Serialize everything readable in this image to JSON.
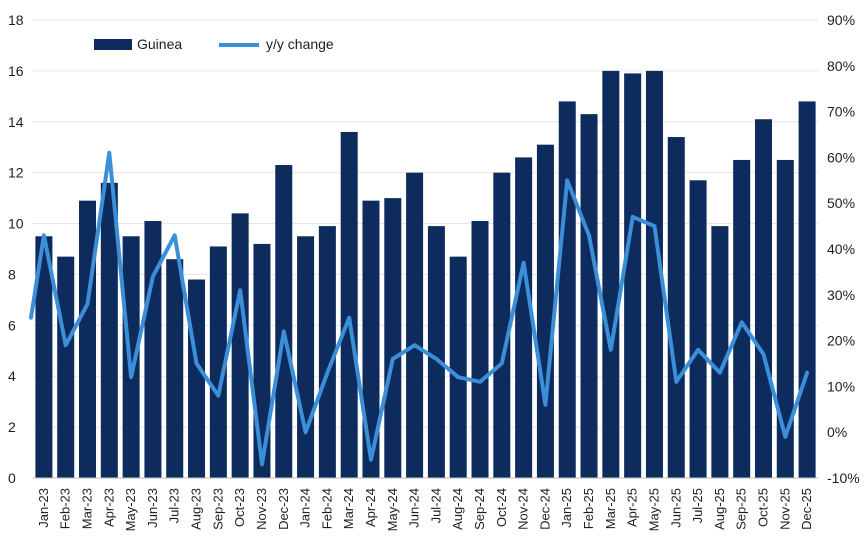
{
  "chart_data": {
    "type": "bar",
    "title": "",
    "xlabel": "",
    "ylabel": "",
    "ylim": [
      0,
      18
    ],
    "y_ticks": [
      "0",
      "2",
      "4",
      "6",
      "8",
      "10",
      "12",
      "14",
      "16",
      "18"
    ],
    "y2lim": [
      -10,
      90
    ],
    "y2_ticks": [
      "-10%",
      "0%",
      "10%",
      "20%",
      "30%",
      "40%",
      "50%",
      "60%",
      "70%",
      "80%",
      "90%"
    ],
    "grid": true,
    "legend_position": "top-left",
    "categories": [
      "Jan-23",
      "Feb-23",
      "Mar-23",
      "Apr-23",
      "May-23",
      "Jun-23",
      "Jul-23",
      "Aug-23",
      "Sep-23",
      "Oct-23",
      "Nov-23",
      "Dec-23",
      "Jan-24",
      "Feb-24",
      "Mar-24",
      "Apr-24",
      "May-24",
      "Jun-24",
      "Jul-24",
      "Aug-24",
      "Sep-24",
      "Oct-24",
      "Nov-24",
      "Dec-24",
      "Jan-25",
      "Feb-25",
      "Mar-25",
      "Apr-25",
      "May-25",
      "Jun-25",
      "Jul-25",
      "Aug-25",
      "Sep-25",
      "Oct-25",
      "Nov-25",
      "Dec-25"
    ],
    "series": [
      {
        "name": "Guinea",
        "type": "bar",
        "axis": "left",
        "color": "#0d2b5c",
        "values": [
          9.5,
          8.7,
          10.9,
          11.6,
          9.5,
          10.1,
          8.6,
          7.8,
          9.1,
          10.4,
          9.2,
          12.3,
          9.5,
          9.9,
          13.6,
          10.9,
          11.0,
          12.0,
          9.9,
          8.7,
          10.1,
          12.0,
          12.6,
          13.1,
          14.8,
          14.3,
          16.0,
          15.9,
          16.0,
          13.4,
          11.7,
          9.9,
          12.5,
          14.1,
          12.5,
          14.8
        ]
      },
      {
        "name": "y/y change",
        "type": "line",
        "axis": "right",
        "color": "#3b8fd9",
        "values": [
          43,
          19,
          28,
          61,
          12,
          34,
          43,
          15,
          8,
          31,
          -7,
          22,
          0,
          13,
          25,
          -6,
          16,
          19,
          16,
          12,
          11,
          15,
          37,
          6,
          55,
          43,
          18,
          47,
          45,
          11,
          18,
          13,
          24,
          17,
          -1,
          13
        ]
      }
    ]
  }
}
